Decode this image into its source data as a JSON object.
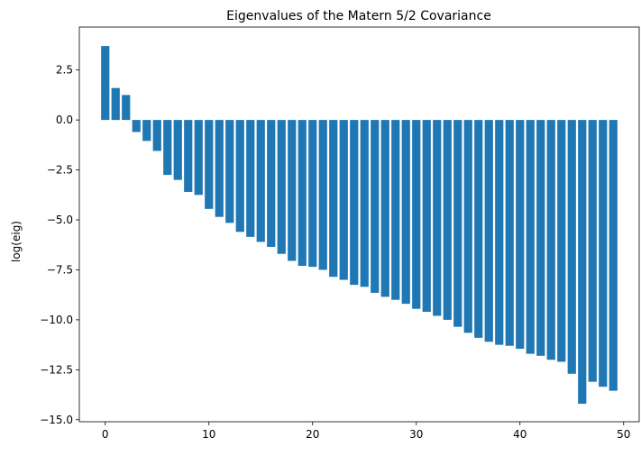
{
  "chart_data": {
    "type": "bar",
    "title": "Eigenvalues of the Matern 5/2 Covariance",
    "xlabel": "",
    "ylabel": "log(eig)",
    "xlim": [
      -2.5,
      51.5
    ],
    "ylim": [
      -15.1,
      4.65
    ],
    "grid": false,
    "bar_color": "#1f77b4",
    "x": [
      0,
      1,
      2,
      3,
      4,
      5,
      6,
      7,
      8,
      9,
      10,
      11,
      12,
      13,
      14,
      15,
      16,
      17,
      18,
      19,
      20,
      21,
      22,
      23,
      24,
      25,
      26,
      27,
      28,
      29,
      30,
      31,
      32,
      33,
      34,
      35,
      36,
      37,
      38,
      39,
      40,
      41,
      42,
      43,
      44,
      45,
      46,
      47,
      48,
      49
    ],
    "values": [
      3.7,
      1.6,
      1.25,
      -0.6,
      -1.05,
      -1.55,
      -2.75,
      -3.0,
      -3.6,
      -3.75,
      -4.45,
      -4.85,
      -5.15,
      -5.6,
      -5.85,
      -6.1,
      -6.35,
      -6.7,
      -7.05,
      -7.3,
      -7.35,
      -7.5,
      -7.85,
      -8.0,
      -8.25,
      -8.35,
      -8.65,
      -8.85,
      -9.0,
      -9.2,
      -9.45,
      -9.6,
      -9.8,
      -10.0,
      -10.35,
      -10.65,
      -10.9,
      -11.1,
      -11.25,
      -11.3,
      -11.45,
      -11.7,
      -11.8,
      -12.0,
      -12.1,
      -12.7,
      -14.2,
      -13.1,
      -13.35,
      -13.55
    ],
    "x_ticks": [
      0,
      10,
      20,
      30,
      40,
      50
    ],
    "y_ticks": [
      2.5,
      0.0,
      -2.5,
      -5.0,
      -7.5,
      -10.0,
      -12.5,
      -15.0
    ],
    "x_tick_labels": [
      "0",
      "10",
      "20",
      "30",
      "40",
      "50"
    ],
    "y_tick_labels": [
      "2.5",
      "0.0",
      "−2.5",
      "−5.0",
      "−7.5",
      "−10.0",
      "−12.5",
      "−15.0"
    ]
  }
}
